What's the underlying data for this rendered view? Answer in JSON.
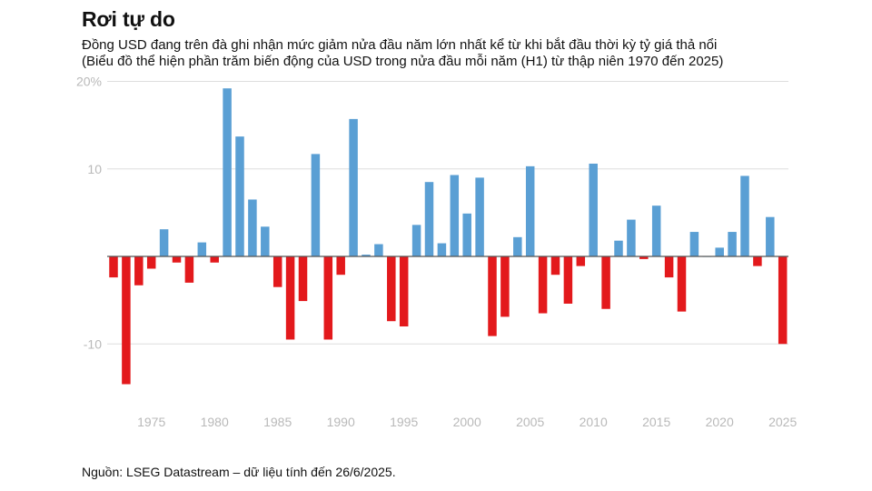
{
  "header": {
    "title": "Rơi tự do",
    "subtitle_line1": "Đồng USD đang trên đà ghi nhận mức giảm nửa đầu năm lớn nhất kể từ khi bắt đầu thời kỳ tỷ giá thả nổi",
    "subtitle_line2": "(Biểu đồ thể hiện phần trăm biến động của USD trong nửa đầu mỗi năm (H1) từ thập niên 1970 đến 2025)"
  },
  "footer": {
    "source": "Nguồn: LSEG Datastream – dữ liệu tính đến 26/6/2025."
  },
  "colors": {
    "positive": "#5a9fd4",
    "negative": "#e3191c",
    "grid": "#dedede",
    "zero_line": "#555555",
    "tick": "#b9b9b9"
  },
  "chart_data": {
    "type": "bar",
    "title": "Rơi tự do",
    "xlabel": "",
    "ylabel": "",
    "ylim": [
      -15,
      20
    ],
    "y_ticks": [
      {
        "value": 20,
        "label": "20%"
      },
      {
        "value": 10,
        "label": "10"
      },
      {
        "value": -10,
        "label": "-10"
      }
    ],
    "x_ticks": [
      1975,
      1980,
      1985,
      1990,
      1995,
      2000,
      2005,
      2010,
      2015,
      2020,
      2025
    ],
    "grid": true,
    "categories": [
      1972,
      1973,
      1974,
      1975,
      1976,
      1977,
      1978,
      1979,
      1980,
      1981,
      1982,
      1983,
      1984,
      1985,
      1986,
      1987,
      1988,
      1989,
      1990,
      1991,
      1992,
      1993,
      1994,
      1995,
      1996,
      1997,
      1998,
      1999,
      2000,
      2001,
      2002,
      2003,
      2004,
      2005,
      2006,
      2007,
      2008,
      2009,
      2010,
      2011,
      2012,
      2013,
      2014,
      2015,
      2016,
      2017,
      2018,
      2019,
      2020,
      2021,
      2022,
      2023,
      2024,
      2025
    ],
    "values": [
      -2.4,
      -14.6,
      -3.3,
      -1.4,
      3.1,
      -0.7,
      -3.0,
      1.6,
      -0.7,
      19.2,
      13.7,
      6.5,
      3.4,
      -3.5,
      -9.5,
      -5.1,
      11.7,
      -9.5,
      -2.1,
      15.7,
      0.2,
      1.4,
      -7.4,
      -8.0,
      3.6,
      8.5,
      1.5,
      9.3,
      4.9,
      9.0,
      -9.1,
      -6.9,
      2.2,
      10.3,
      -6.5,
      -2.1,
      -5.4,
      -1.1,
      10.6,
      -6.0,
      1.8,
      4.2,
      -0.3,
      5.8,
      -2.4,
      -6.3,
      2.8,
      0.0,
      1.0,
      2.8,
      9.2,
      -1.1,
      4.5,
      -10.0
    ]
  }
}
